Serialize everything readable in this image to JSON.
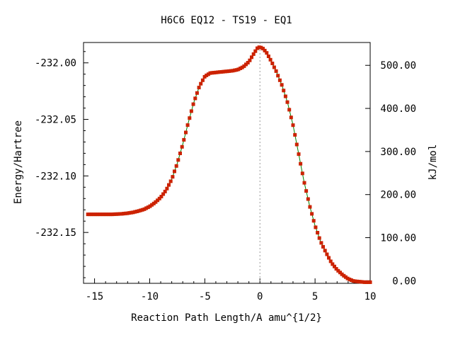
{
  "chart_data": {
    "type": "line",
    "title": "H6C6   EQ12 - TS19 - EQ1",
    "xlabel": "Reaction Path Length/A amu^{1/2}",
    "ylabel": "Energy/Hartree",
    "y2label": "kJ/mol",
    "xlim": [
      -16.0,
      10.0
    ],
    "ylim": [
      -232.195,
      -231.982
    ],
    "y2lim": [
      -6.0,
      553.0
    ],
    "xticks": [
      -15,
      -10,
      -5,
      0,
      5,
      10
    ],
    "xtick_labels": [
      "-15",
      "-10",
      "-5",
      "0",
      "5",
      "10"
    ],
    "yticks": [
      -232.0,
      -232.05,
      -232.1,
      -232.15
    ],
    "ytick_labels": [
      "-232.00",
      "-232.05",
      "-232.10",
      "-232.15"
    ],
    "y2ticks": [
      0,
      100,
      200,
      300,
      400,
      500
    ],
    "y2tick_labels": [
      "0.00",
      "100.00",
      "200.00",
      "300.00",
      "400.00",
      "500.00"
    ],
    "vline_x": 0,
    "grid": false,
    "colors": {
      "line": "#008000",
      "marker": "#cc2200",
      "vline": "#999999"
    },
    "series": [
      {
        "points": [
          [
            -15.6,
            -232.134
          ],
          [
            -15.0,
            -232.134
          ],
          [
            -14.5,
            -232.134
          ],
          [
            -14.0,
            -232.134
          ],
          [
            -13.5,
            -232.134
          ],
          [
            -13.0,
            -232.1338
          ],
          [
            -12.5,
            -232.1335
          ],
          [
            -12.0,
            -232.133
          ],
          [
            -11.5,
            -232.1322
          ],
          [
            -11.0,
            -232.131
          ],
          [
            -10.5,
            -232.1295
          ],
          [
            -10.0,
            -232.127
          ],
          [
            -9.5,
            -232.1235
          ],
          [
            -9.0,
            -232.119
          ],
          [
            -8.5,
            -232.1125
          ],
          [
            -8.0,
            -232.103
          ],
          [
            -7.5,
            -232.089
          ],
          [
            -7.0,
            -232.072
          ],
          [
            -6.5,
            -232.053
          ],
          [
            -6.0,
            -232.035
          ],
          [
            -5.5,
            -232.021
          ],
          [
            -5.0,
            -232.012
          ],
          [
            -4.5,
            -232.009
          ],
          [
            -4.0,
            -232.0085
          ],
          [
            -3.5,
            -232.008
          ],
          [
            -3.0,
            -232.0075
          ],
          [
            -2.5,
            -232.007
          ],
          [
            -2.0,
            -232.006
          ],
          [
            -1.5,
            -232.0035
          ],
          [
            -1.0,
            -231.999
          ],
          [
            -0.5,
            -231.991
          ],
          [
            -0.2,
            -231.9865
          ],
          [
            0.0,
            -231.986
          ],
          [
            0.3,
            -231.9875
          ],
          [
            0.6,
            -231.991
          ],
          [
            1.0,
            -231.998
          ],
          [
            1.5,
            -232.008
          ],
          [
            2.0,
            -232.02
          ],
          [
            2.5,
            -232.035
          ],
          [
            3.0,
            -232.055
          ],
          [
            3.5,
            -232.08
          ],
          [
            4.0,
            -232.105
          ],
          [
            4.5,
            -232.126
          ],
          [
            5.0,
            -232.144
          ],
          [
            5.5,
            -232.158
          ],
          [
            6.0,
            -232.168
          ],
          [
            6.5,
            -232.177
          ],
          [
            7.0,
            -232.183
          ],
          [
            7.5,
            -232.1875
          ],
          [
            8.0,
            -232.191
          ],
          [
            8.5,
            -232.193
          ],
          [
            9.0,
            -232.1935
          ],
          [
            9.5,
            -232.194
          ],
          [
            10.0,
            -232.194
          ]
        ]
      }
    ]
  }
}
